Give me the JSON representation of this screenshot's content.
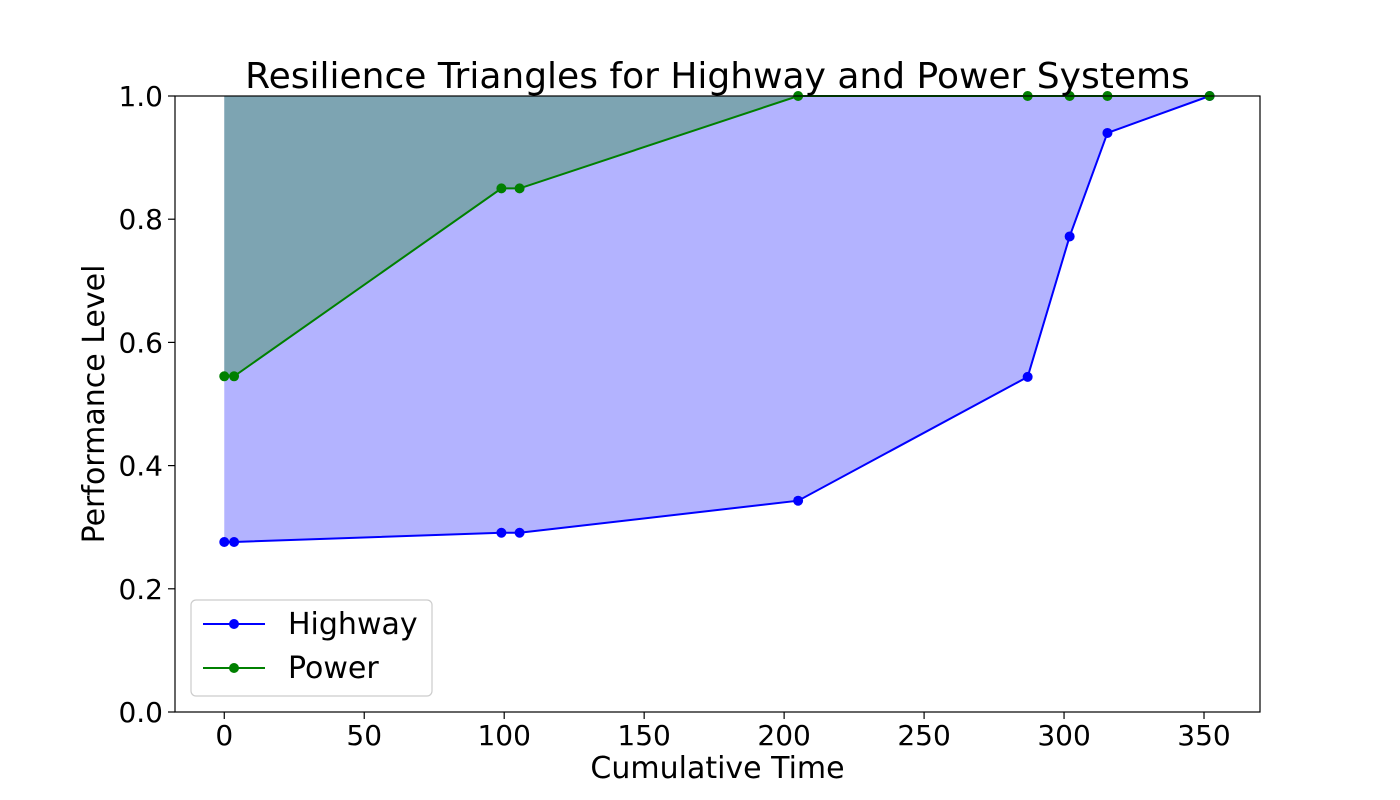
{
  "chart_data": {
    "type": "line",
    "title": "Resilience Triangles for Highway and Power Systems",
    "xlabel": "Cumulative Time",
    "ylabel": "Performance Level",
    "xlim": [
      -17.6,
      370
    ],
    "ylim": [
      0.0,
      1.0
    ],
    "xticks": [
      0,
      50,
      100,
      150,
      200,
      250,
      300,
      350
    ],
    "yticks": [
      0.0,
      0.2,
      0.4,
      0.6,
      0.8,
      1.0
    ],
    "grid": false,
    "legend_position": "lower-left",
    "fill_between_series_and_top": true,
    "series": [
      {
        "name": "Highway",
        "color": "#0000ff",
        "fill_color": "#8080ff",
        "x": [
          0,
          3.5,
          99,
          105.5,
          205,
          287,
          302,
          315.5,
          352
        ],
        "y": [
          0.276,
          0.276,
          0.291,
          0.291,
          0.343,
          0.544,
          0.772,
          0.94,
          1.0
        ]
      },
      {
        "name": "Power",
        "color": "#008000",
        "fill_color": "#008000",
        "x": [
          0,
          3.5,
          99,
          105.5,
          205,
          287,
          302,
          315.5,
          352
        ],
        "y": [
          0.545,
          0.545,
          0.85,
          0.85,
          1.0,
          1.0,
          1.0,
          1.0,
          1.0
        ]
      }
    ]
  }
}
